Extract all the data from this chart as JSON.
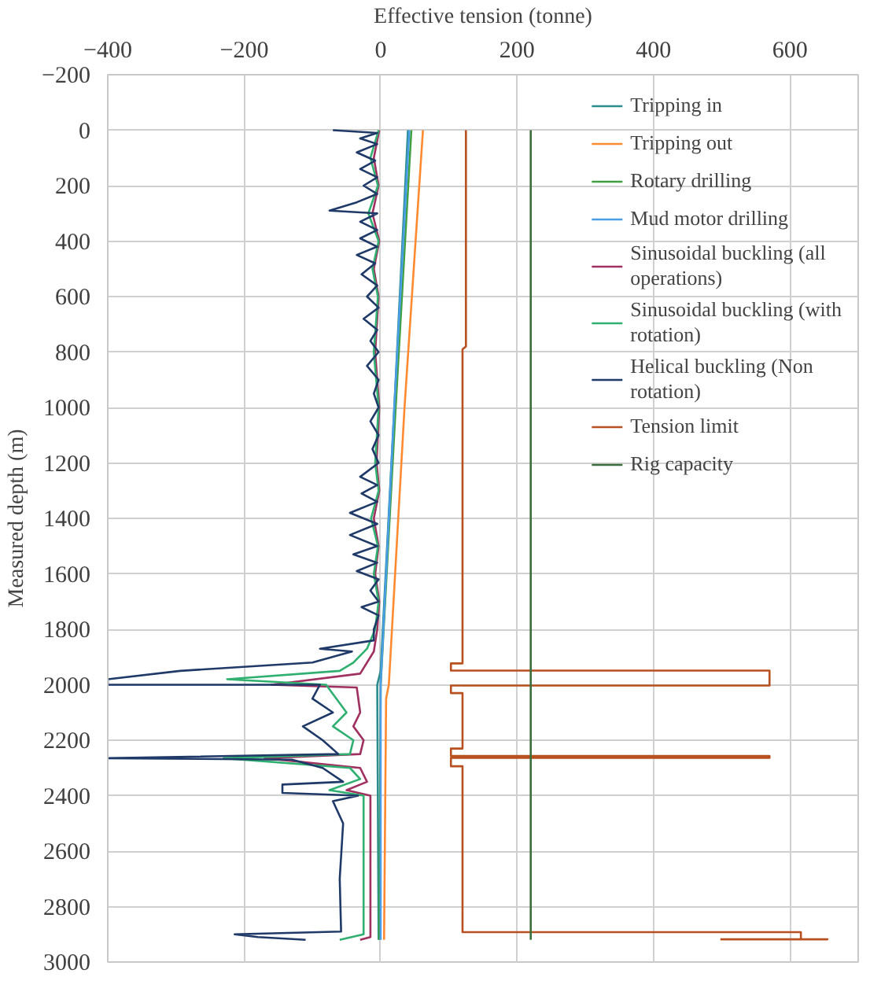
{
  "chart_data": {
    "type": "line",
    "xlabel": "Effective tension (tonne)",
    "ylabel": "Measured depth (m)",
    "xlim": [
      -400,
      700
    ],
    "ylim": [
      3000,
      -200
    ],
    "xticks": [
      -400,
      -200,
      0,
      200,
      400,
      600
    ],
    "yticks": [
      -200,
      0,
      200,
      400,
      600,
      800,
      1000,
      1200,
      1400,
      1600,
      1800,
      2000,
      2200,
      2400,
      2600,
      2800,
      3000
    ],
    "grid": true,
    "legend": "top right",
    "series": [
      {
        "name": "Tripping in",
        "color": "#2a8c8c",
        "x": [
          40,
          20,
          0,
          -5,
          -3
        ],
        "values": [
          0,
          1000,
          1950,
          2000,
          2920
        ]
      },
      {
        "name": "Tripping out",
        "color": "#ff8a30",
        "x": [
          62,
          35,
          12,
          8,
          5
        ],
        "values": [
          0,
          1000,
          2000,
          2050,
          2920
        ]
      },
      {
        "name": "Rotary drilling",
        "color": "#3fa040",
        "x": [
          45,
          22,
          0,
          -2
        ],
        "values": [
          0,
          1000,
          2000,
          2920
        ]
      },
      {
        "name": "Mud motor drilling",
        "color": "#4a9ee8",
        "x": [
          42,
          20,
          0,
          0
        ],
        "values": [
          0,
          1000,
          2000,
          2920
        ]
      },
      {
        "name": "Sinusoidal buckling (all operations)",
        "color": "#a03060",
        "x": [
          -2,
          -10,
          -3,
          -12,
          -2,
          -10,
          -3,
          -8,
          -2,
          -6,
          -2,
          -10,
          -3,
          -8,
          -2,
          -5,
          -10,
          -30,
          -160,
          -35,
          -30,
          -40,
          -25,
          -30,
          -170,
          -30,
          -20,
          -50,
          -15,
          -15,
          -15,
          -30
        ],
        "values": [
          0,
          100,
          200,
          300,
          400,
          500,
          600,
          800,
          1000,
          1200,
          1300,
          1400,
          1500,
          1600,
          1700,
          1800,
          1880,
          1960,
          2000,
          2010,
          2100,
          2150,
          2200,
          2250,
          2265,
          2300,
          2350,
          2380,
          2400,
          2900,
          2910,
          2920
        ]
      },
      {
        "name": "Sinusoidal buckling (with rotation)",
        "color": "#30b070",
        "x": [
          -3,
          -15,
          -4,
          -18,
          -3,
          -12,
          -4,
          -10,
          -3,
          -8,
          -3,
          -14,
          -4,
          -10,
          -3,
          -8,
          -20,
          -40,
          -60,
          -225,
          -80,
          -50,
          -70,
          -40,
          -45,
          -230,
          -45,
          -30,
          -75,
          -25,
          -25,
          -25,
          -60
        ],
        "values": [
          0,
          100,
          200,
          300,
          400,
          500,
          600,
          800,
          1000,
          1200,
          1300,
          1400,
          1500,
          1600,
          1700,
          1800,
          1870,
          1920,
          1950,
          1980,
          2000,
          2100,
          2150,
          2200,
          2250,
          2265,
          2300,
          2340,
          2380,
          2400,
          2500,
          2900,
          2920
        ]
      },
      {
        "name": "Helical buckling (Non rotation)",
        "color": "#1f3a68",
        "x": [
          -70,
          -5,
          -30,
          -5,
          -35,
          -8,
          -30,
          -5,
          -25,
          -5,
          -35,
          -75,
          -5,
          -30,
          -5,
          -30,
          -5,
          -35,
          -8,
          -28,
          -5,
          -20,
          -3,
          -25,
          -5,
          -15,
          -3,
          -20,
          -3,
          -10,
          -3,
          -15,
          -3,
          -12,
          -3,
          -30,
          -5,
          -28,
          -5,
          -45,
          -5,
          -45,
          -5,
          -40,
          -5,
          -35,
          -3,
          -15,
          -3,
          -28,
          -3,
          -10,
          -10,
          -89,
          -42,
          -100,
          -294,
          -400,
          -400,
          -89,
          -100,
          -70,
          -114,
          -85,
          -62,
          -400,
          -130,
          -85,
          -55,
          -144,
          -144,
          -33,
          -70,
          -55,
          -60,
          -58,
          -214,
          -180,
          -110
        ],
        "values": [
          0,
          10,
          30,
          50,
          80,
          110,
          140,
          170,
          200,
          230,
          260,
          290,
          300,
          330,
          360,
          390,
          420,
          450,
          480,
          520,
          560,
          600,
          640,
          680,
          720,
          760,
          800,
          850,
          900,
          950,
          1000,
          1050,
          1100,
          1150,
          1200,
          1250,
          1280,
          1310,
          1340,
          1380,
          1420,
          1460,
          1500,
          1530,
          1560,
          1590,
          1620,
          1660,
          1700,
          1720,
          1750,
          1800,
          1840,
          1870,
          1880,
          1920,
          1950,
          1980,
          2000,
          2000,
          2050,
          2100,
          2150,
          2200,
          2250,
          2265,
          2270,
          2300,
          2350,
          2360,
          2390,
          2400,
          2420,
          2500,
          2700,
          2890,
          2900,
          2910,
          2920
        ]
      },
      {
        "name": "Tension limit",
        "color": "#b85020",
        "x": [
          125,
          125,
          120,
          120,
          103,
          103,
          570,
          570,
          103,
          103,
          120,
          120,
          103,
          103,
          570,
          570,
          103,
          103,
          120,
          120,
          616,
          616,
          655,
          498
        ],
        "values": [
          0,
          780,
          790,
          1923,
          1923,
          1949,
          1949,
          2003,
          2003,
          2030,
          2030,
          2230,
          2230,
          2257,
          2257,
          2264,
          2264,
          2294,
          2294,
          2892,
          2892,
          2918,
          2918,
          2918
        ]
      },
      {
        "name": "Rig capacity",
        "color": "#3a6e3a",
        "x": [
          220,
          220
        ],
        "values": [
          0,
          2920
        ]
      }
    ]
  }
}
